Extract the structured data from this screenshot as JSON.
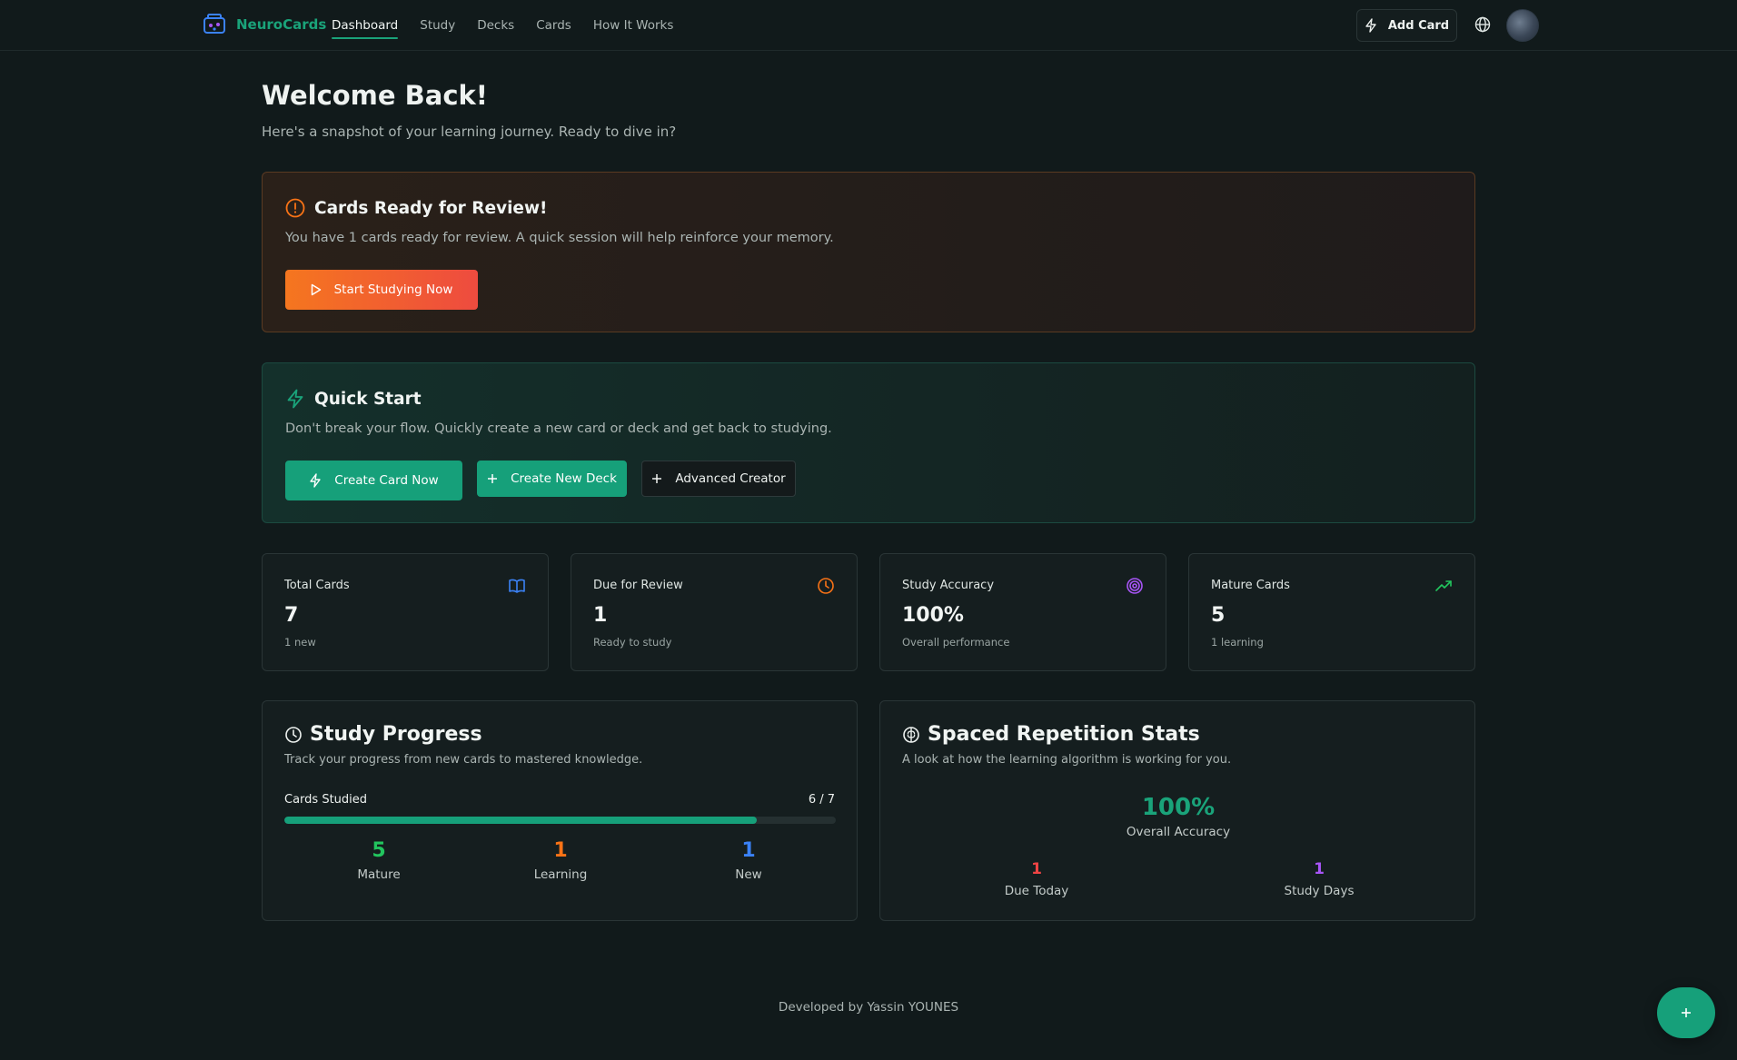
{
  "nav": {
    "brand": "NeuroCards",
    "links": [
      "Dashboard",
      "Study",
      "Decks",
      "Cards",
      "How It Works"
    ],
    "active": "Dashboard",
    "add_card": "Add Card"
  },
  "header": {
    "title": "Welcome Back!",
    "subtitle": "Here's a snapshot of your learning journey. Ready to dive in?"
  },
  "review": {
    "title": "Cards Ready for Review!",
    "description": "You have 1 cards ready for review. A quick session will help reinforce your memory.",
    "button": "Start Studying Now"
  },
  "quick_start": {
    "title": "Quick Start",
    "description": "Don't break your flow. Quickly create a new card or deck and get back to studying.",
    "create_card": "Create Card Now",
    "create_deck": "Create New Deck",
    "advanced": "Advanced Creator"
  },
  "stats": [
    {
      "label": "Total Cards",
      "value": "7",
      "sub": "1 new",
      "icon": "book-open-icon",
      "color": "#3b82f6"
    },
    {
      "label": "Due for Review",
      "value": "1",
      "sub": "Ready to study",
      "icon": "clock-icon",
      "color": "#f97316"
    },
    {
      "label": "Study Accuracy",
      "value": "100%",
      "sub": "Overall performance",
      "icon": "target-icon",
      "color": "#a855f7"
    },
    {
      "label": "Mature Cards",
      "value": "5",
      "sub": "1 learning",
      "icon": "trending-up-icon",
      "color": "#22c55e"
    }
  ],
  "progress": {
    "title": "Study Progress",
    "description": "Track your progress from new cards to mastered knowledge.",
    "label": "Cards Studied",
    "count": "6 / 7",
    "fraction": 0.857,
    "mature": {
      "value": "5",
      "label": "Mature",
      "color": "#22c55e"
    },
    "learning": {
      "value": "1",
      "label": "Learning",
      "color": "#f97316"
    },
    "new": {
      "value": "1",
      "label": "New",
      "color": "#3b82f6"
    }
  },
  "srs": {
    "title": "Spaced Repetition Stats",
    "description": "A look at how the learning algorithm is working for you.",
    "accuracy": "100%",
    "accuracy_label": "Overall Accuracy",
    "due": {
      "value": "1",
      "label": "Due Today",
      "color": "#ef4444"
    },
    "days": {
      "value": "1",
      "label": "Study Days",
      "color": "#a855f7"
    }
  },
  "footer": "Developed by Yassin YOUNES",
  "colors": {
    "accent": "#16a07a",
    "background": "#111a1b"
  }
}
